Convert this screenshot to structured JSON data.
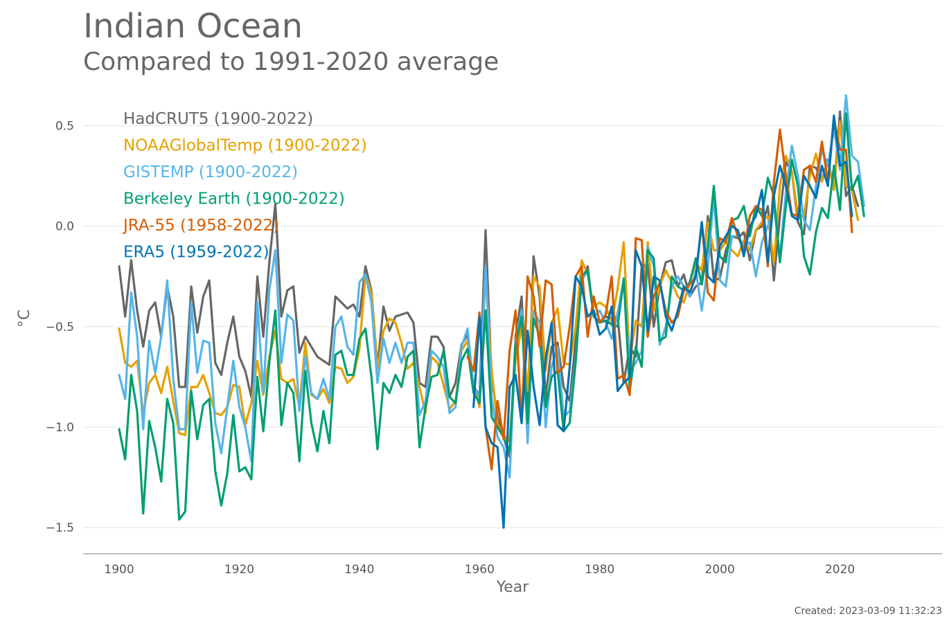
{
  "header": {
    "title": "Indian Ocean",
    "subtitle": "Compared to 1991-2020 average"
  },
  "footer": {
    "created": "Created: 2023-03-09 11:32:23"
  },
  "chart_data": {
    "type": "line",
    "title": "Indian Ocean",
    "subtitle": "Compared to 1991-2020 average",
    "xlabel": "Year",
    "ylabel": "°C",
    "xlim": [
      1894,
      2037
    ],
    "ylim": [
      -1.63,
      0.66
    ],
    "xticks": [
      1900,
      1920,
      1940,
      1960,
      1980,
      2000,
      2020
    ],
    "xtick_labels": [
      "1900",
      "1920",
      "1940",
      "1960",
      "1980",
      "2000",
      "2020"
    ],
    "yticks": [
      0.5,
      0.0,
      -0.5,
      -1.0,
      -1.5
    ],
    "ytick_labels": [
      "0.5",
      "0.0",
      "−0.5",
      "−1.0",
      "−1.5"
    ],
    "grid": "horizontal",
    "legend_position": "top-left",
    "series": [
      {
        "name": "HadCRUT5 (1900-2022)",
        "color": "#666666",
        "x_start": 1900,
        "values": [
          -0.2,
          -0.45,
          -0.17,
          -0.42,
          -0.6,
          -0.42,
          -0.38,
          -0.55,
          -0.3,
          -0.45,
          -0.8,
          -0.8,
          -0.3,
          -0.53,
          -0.35,
          -0.27,
          -0.68,
          -0.74,
          -0.58,
          -0.45,
          -0.65,
          -0.72,
          -0.85,
          -0.25,
          -0.55,
          -0.18,
          0.11,
          -0.45,
          -0.32,
          -0.3,
          -0.63,
          -0.55,
          -0.6,
          -0.65,
          -0.67,
          -0.69,
          -0.35,
          -0.38,
          -0.41,
          -0.39,
          -0.45,
          -0.2,
          -0.32,
          -0.7,
          -0.4,
          -0.52,
          -0.45,
          -0.44,
          -0.43,
          -0.48,
          -0.78,
          -0.8,
          -0.55,
          -0.55,
          -0.6,
          -0.85,
          -0.78,
          -0.59,
          -0.54,
          -0.8,
          -0.84,
          -0.02,
          -0.75,
          -0.95,
          -1.05,
          -1.15,
          -0.55,
          -0.35,
          -0.95,
          -0.15,
          -0.35,
          -0.85,
          -0.6,
          -0.58,
          -0.8,
          -0.87,
          -0.57,
          -0.27,
          -0.2,
          -0.45,
          -0.48,
          -0.45,
          -0.46,
          -0.45,
          -0.78,
          -0.6,
          -0.65,
          -0.2,
          -0.19,
          -0.5,
          -0.3,
          -0.18,
          -0.17,
          -0.3,
          -0.24,
          -0.35,
          -0.3,
          -0.28,
          0.05,
          -0.27,
          -0.26,
          -0.12,
          -0.05,
          -0.06,
          -0.03,
          -0.17,
          -0.02,
          0.0,
          0.1,
          -0.27,
          0.05,
          0.32,
          0.27,
          0.02,
          -0.04,
          0.3,
          0.29,
          0.23,
          0.33,
          0.18,
          0.57,
          0.15,
          0.2,
          0.1
        ]
      },
      {
        "name": "NOAAGlobalTemp (1900-2022)",
        "color": "#E6A000",
        "x_start": 1900,
        "values": [
          -0.51,
          -0.68,
          -0.7,
          -0.67,
          -0.93,
          -0.78,
          -0.74,
          -0.83,
          -0.7,
          -0.87,
          -1.03,
          -1.04,
          -0.8,
          -0.8,
          -0.74,
          -0.83,
          -0.93,
          -0.94,
          -0.9,
          -0.79,
          -0.8,
          -0.99,
          -0.88,
          -0.67,
          -0.84,
          -0.65,
          -0.52,
          -0.76,
          -0.78,
          -0.76,
          -0.9,
          -0.58,
          -0.84,
          -0.86,
          -0.81,
          -0.88,
          -0.7,
          -0.71,
          -0.78,
          -0.75,
          -0.61,
          -0.24,
          -0.33,
          -0.71,
          -0.52,
          -0.46,
          -0.48,
          -0.58,
          -0.71,
          -0.68,
          -0.8,
          -0.93,
          -0.65,
          -0.68,
          -0.79,
          -0.91,
          -0.87,
          -0.62,
          -0.57,
          -0.78,
          -0.9,
          -0.23,
          -0.71,
          -0.99,
          -1.04,
          -1.07,
          -0.67,
          -0.5,
          -0.82,
          -0.25,
          -0.3,
          -0.72,
          -0.48,
          -0.41,
          -0.68,
          -0.69,
          -0.5,
          -0.17,
          -0.24,
          -0.4,
          -0.38,
          -0.4,
          -0.48,
          -0.31,
          -0.08,
          -0.67,
          -0.47,
          -0.5,
          -0.08,
          -0.42,
          -0.3,
          -0.22,
          -0.28,
          -0.35,
          -0.38,
          -0.28,
          -0.18,
          -0.22,
          0.02,
          -0.12,
          -0.12,
          -0.08,
          -0.12,
          -0.15,
          -0.07,
          -0.12,
          -0.02,
          0.02,
          0.05,
          -0.18,
          0.2,
          0.35,
          0.27,
          0.05,
          0.05,
          0.25,
          0.36,
          0.22,
          0.32,
          0.18,
          0.52,
          0.2,
          0.18,
          0.03
        ]
      },
      {
        "name": "GISTEMP (1900-2022)",
        "color": "#56B4E9",
        "x_start": 1900,
        "values": [
          -0.74,
          -0.86,
          -0.33,
          -0.55,
          -1.01,
          -0.57,
          -0.73,
          -0.55,
          -0.27,
          -0.76,
          -1.01,
          -1.01,
          -0.38,
          -0.73,
          -0.57,
          -0.58,
          -0.98,
          -1.13,
          -0.9,
          -0.67,
          -0.9,
          -1.0,
          -1.17,
          -0.38,
          -0.83,
          -0.32,
          -0.12,
          -0.68,
          -0.44,
          -0.47,
          -0.92,
          -0.65,
          -0.83,
          -0.86,
          -0.76,
          -0.86,
          -0.5,
          -0.45,
          -0.6,
          -0.64,
          -0.28,
          -0.24,
          -0.38,
          -0.78,
          -0.56,
          -0.68,
          -0.58,
          -0.68,
          -0.58,
          -0.58,
          -0.94,
          -0.87,
          -0.62,
          -0.65,
          -0.7,
          -0.93,
          -0.9,
          -0.6,
          -0.51,
          -0.8,
          -0.85,
          -0.2,
          -0.85,
          -1.05,
          -1.1,
          -1.25,
          -0.58,
          -0.42,
          -1.08,
          -0.42,
          -0.48,
          -1.0,
          -0.7,
          -0.6,
          -0.95,
          -0.92,
          -0.67,
          -0.27,
          -0.22,
          -0.45,
          -0.42,
          -0.48,
          -0.56,
          -0.43,
          -0.27,
          -0.72,
          -0.68,
          -0.62,
          -0.1,
          -0.2,
          -0.59,
          -0.5,
          -0.3,
          -0.25,
          -0.3,
          -0.35,
          -0.22,
          -0.42,
          -0.2,
          0.15,
          -0.27,
          -0.3,
          -0.05,
          -0.05,
          -0.1,
          -0.08,
          -0.25,
          -0.08,
          0.0,
          0.1,
          -0.15,
          0.17,
          0.4,
          0.25,
          0.03,
          -0.02,
          0.2,
          0.38,
          0.3,
          0.49,
          0.28,
          0.65,
          0.35,
          0.32,
          0.1
        ]
      },
      {
        "name": "Berkeley Earth (1900-2022)",
        "color": "#009E73",
        "x_start": 1900,
        "values": [
          -1.01,
          -1.16,
          -0.74,
          -0.92,
          -1.43,
          -0.97,
          -1.1,
          -1.27,
          -0.86,
          -0.98,
          -1.46,
          -1.42,
          -0.82,
          -1.06,
          -0.89,
          -0.86,
          -1.22,
          -1.39,
          -1.23,
          -0.94,
          -1.22,
          -1.2,
          -1.26,
          -0.75,
          -1.02,
          -0.68,
          -0.42,
          -0.99,
          -0.78,
          -0.83,
          -1.17,
          -0.72,
          -0.98,
          -1.12,
          -0.92,
          -1.08,
          -0.64,
          -0.62,
          -0.74,
          -0.74,
          -0.56,
          -0.51,
          -0.75,
          -1.11,
          -0.78,
          -0.83,
          -0.74,
          -0.8,
          -0.65,
          -0.62,
          -1.1,
          -0.9,
          -0.75,
          -0.74,
          -0.62,
          -0.85,
          -0.88,
          -0.67,
          -0.61,
          -0.83,
          -0.88,
          -0.42,
          -0.95,
          -1.0,
          -1.05,
          -1.12,
          -0.6,
          -0.45,
          -0.98,
          -0.46,
          -0.55,
          -0.9,
          -0.75,
          -0.72,
          -1.02,
          -0.98,
          -0.68,
          -0.25,
          -0.22,
          -0.45,
          -0.48,
          -0.47,
          -0.49,
          -0.5,
          -0.26,
          -0.82,
          -0.6,
          -0.7,
          -0.12,
          -0.16,
          -0.57,
          -0.55,
          -0.25,
          -0.3,
          -0.32,
          -0.28,
          -0.16,
          -0.29,
          -0.1,
          0.2,
          -0.15,
          -0.18,
          0.03,
          0.04,
          0.1,
          -0.05,
          0.1,
          0.05,
          0.24,
          0.15,
          -0.18,
          0.1,
          0.33,
          0.2,
          -0.15,
          -0.24,
          -0.03,
          0.09,
          0.04,
          0.3,
          0.08,
          0.56,
          0.18,
          0.25,
          0.05
        ]
      },
      {
        "name": "JRA-55 (1958-2022)",
        "color": "#D55E00",
        "x_start": 1958,
        "values": [
          -0.65,
          -0.72,
          -0.43,
          -1.0,
          -1.21,
          -0.87,
          -1.06,
          -0.62,
          -0.42,
          -0.98,
          -0.25,
          -0.35,
          -0.6,
          -0.27,
          -0.29,
          -0.73,
          -0.7,
          -0.5,
          -0.25,
          -0.2,
          -0.55,
          -0.35,
          -0.48,
          -0.44,
          -0.25,
          -0.76,
          -0.74,
          -0.84,
          -0.06,
          -0.07,
          -0.55,
          -0.35,
          -0.28,
          -0.42,
          -0.48,
          -0.45,
          -0.32,
          -0.29,
          -0.25,
          0.02,
          -0.33,
          -0.37,
          -0.06,
          -0.08,
          0.04,
          -0.05,
          -0.12,
          0.05,
          0.1,
          0.08,
          -0.2,
          0.22,
          0.48,
          0.25,
          0.06,
          0.05,
          0.28,
          0.3,
          0.22,
          0.42,
          0.22,
          0.53,
          0.38,
          0.38,
          -0.03
        ]
      },
      {
        "name": "ERA5 (1959-2022)",
        "color": "#0072B2",
        "x_start": 1959,
        "values": [
          -0.9,
          -0.45,
          -1.0,
          -1.08,
          -1.1,
          -1.5,
          -0.8,
          -0.74,
          -0.98,
          -0.52,
          -0.8,
          -0.99,
          -0.66,
          -0.48,
          -0.99,
          -1.02,
          -0.7,
          -0.25,
          -0.3,
          -0.45,
          -0.42,
          -0.54,
          -0.51,
          -0.4,
          -0.82,
          -0.78,
          -0.75,
          -0.12,
          -0.2,
          -0.52,
          -0.25,
          -0.27,
          -0.45,
          -0.52,
          -0.42,
          -0.3,
          -0.33,
          -0.25,
          0.02,
          -0.25,
          -0.28,
          -0.1,
          -0.05,
          0.0,
          -0.02,
          -0.15,
          0.0,
          0.05,
          0.18,
          -0.18,
          0.15,
          0.3,
          0.2,
          0.05,
          0.03,
          0.25,
          0.2,
          0.14,
          0.3,
          0.2,
          0.55,
          0.3,
          0.32,
          0.05
        ]
      }
    ]
  }
}
